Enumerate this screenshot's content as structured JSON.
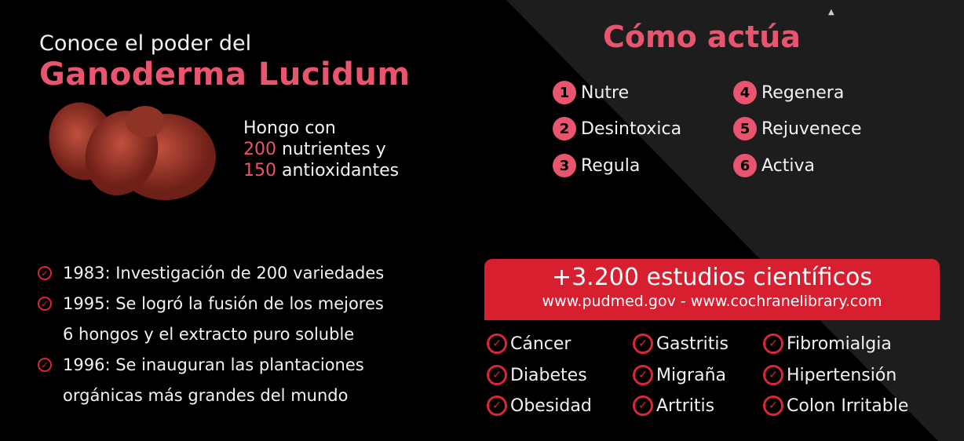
{
  "header": {
    "line1": "Conoce el poder del",
    "line2": "Ganoderma Lucidum"
  },
  "hongo": {
    "line1": "Hongo con",
    "n1": "200",
    "t1": " nutrientes  y",
    "n2": "150",
    "t2": " antioxidantes"
  },
  "como": {
    "title": "Cómo actúa",
    "steps": [
      {
        "num": "1",
        "label": "Nutre"
      },
      {
        "num": "2",
        "label": "Desintoxica"
      },
      {
        "num": "3",
        "label": "Regula"
      },
      {
        "num": "4",
        "label": "Regenera"
      },
      {
        "num": "5",
        "label": "Rejuvenece"
      },
      {
        "num": "6",
        "label": "Activa"
      }
    ]
  },
  "history": [
    "1983: Investigación de 200 variedades",
    "1995: Se logró la fusión de los mejores",
    "6 hongos y el extracto puro soluble",
    "1996: Se inauguran las plantaciones",
    "orgánicas más grandes del mundo"
  ],
  "banner": {
    "title": "+3.200 estudios científicos",
    "sources": "www.pudmed.gov - www.cochranelibrary.com"
  },
  "conditions": [
    "Cáncer",
    "Diabetes",
    "Obesidad",
    "Gastritis",
    "Migraña",
    "Artritis",
    "Fibromialgia",
    "Hipertensión",
    "Colon Irritable"
  ],
  "colors": {
    "accent": "#e9556f",
    "banner": "#d81f30",
    "background": "#000000",
    "panel": "#1e1e1e"
  }
}
